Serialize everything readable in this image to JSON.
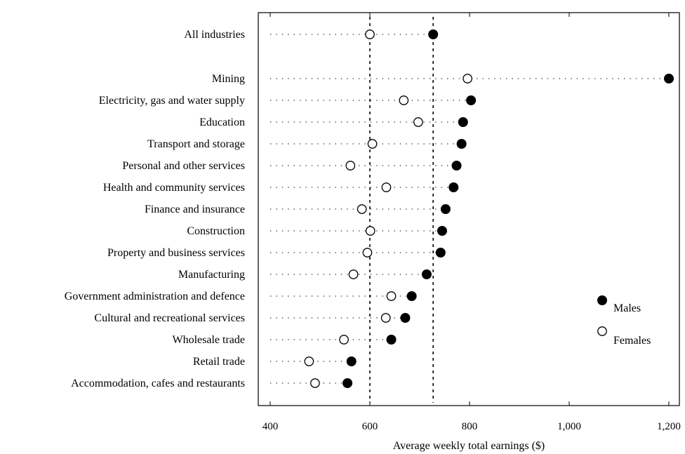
{
  "chart_data": {
    "type": "scatter",
    "xlabel": "Average weekly total earnings ($)",
    "xlim": [
      400,
      1200
    ],
    "xticks": [
      {
        "value": 400,
        "label": "400"
      },
      {
        "value": 600,
        "label": "600"
      },
      {
        "value": 800,
        "label": "800"
      },
      {
        "value": 1000,
        "label": "1,000"
      },
      {
        "value": 1200,
        "label": "1,200"
      }
    ],
    "reference_lines": [
      600,
      727
    ],
    "legend_position": "right",
    "categories": [
      "All industries",
      "Mining",
      "Electricity, gas and water supply",
      "Education",
      "Transport and storage",
      "Personal and other services",
      "Health and community services",
      "Finance and insurance",
      "Construction",
      "Property and business services",
      "Manufacturing",
      "Government administration and defence",
      "Cultural and recreational services",
      "Wholesale trade",
      "Retail trade",
      "Accommodation, cafes and restaurants"
    ],
    "series": [
      {
        "name": "Males",
        "marker": "filled-circle",
        "color": "#000000",
        "values": [
          727,
          1200,
          803,
          787,
          784,
          774,
          768,
          752,
          745,
          742,
          714,
          684,
          671,
          643,
          563,
          555
        ]
      },
      {
        "name": "Females",
        "marker": "open-circle",
        "color": "#000000",
        "values": [
          600,
          796,
          668,
          697,
          605,
          561,
          633,
          584,
          601,
          595,
          567,
          643,
          632,
          548,
          478,
          490
        ]
      }
    ]
  }
}
